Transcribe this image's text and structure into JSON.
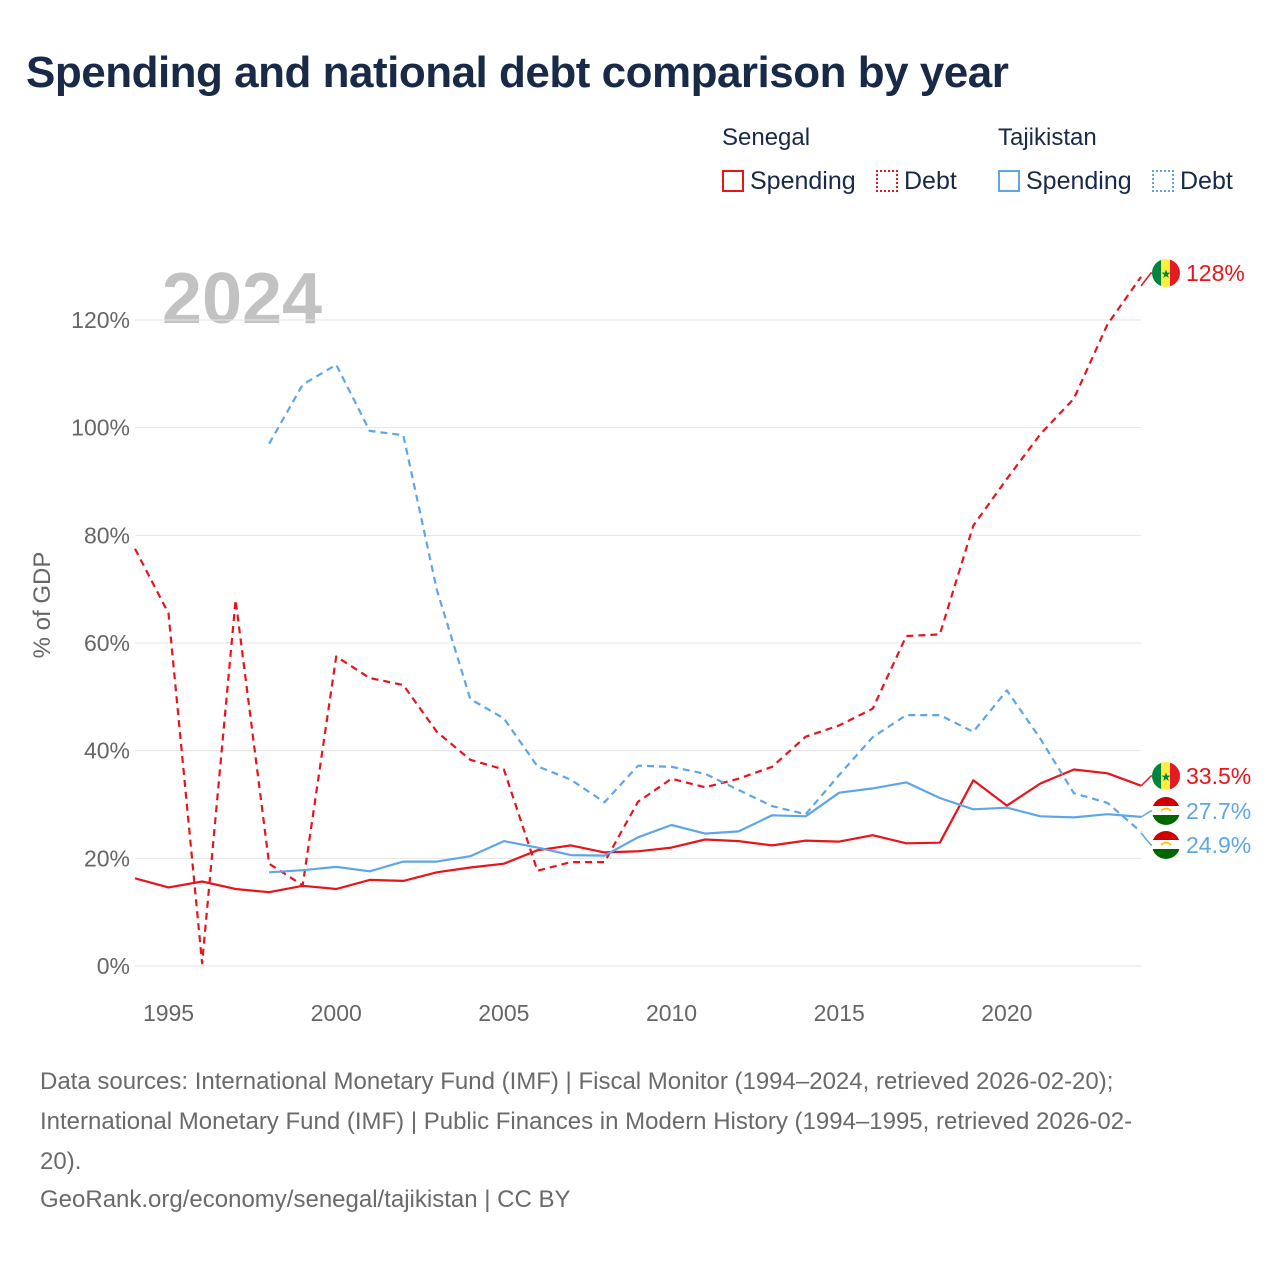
{
  "title": "Spending and national debt comparison by year",
  "legend": {
    "groups": [
      {
        "country": "Senegal",
        "spending_label": "Spending",
        "debt_label": "Debt",
        "color": "#e8141c"
      },
      {
        "country": "Tajikistan",
        "spending_label": "Spending",
        "debt_label": "Debt",
        "color": "#5ea6e6"
      }
    ]
  },
  "chart_data": {
    "type": "line",
    "title": "Spending and national debt comparison by year",
    "year_watermark": "2024",
    "xlabel": "",
    "ylabel": "% of GDP",
    "xlim": [
      1994,
      2024
    ],
    "ylim": [
      0,
      130
    ],
    "xticks": [
      1995,
      2000,
      2005,
      2010,
      2015,
      2020
    ],
    "yticks": [
      0,
      20,
      40,
      60,
      80,
      100,
      120
    ],
    "ytick_labels": [
      "0%",
      "20%",
      "40%",
      "60%",
      "80%",
      "100%",
      "120%"
    ],
    "grid": true,
    "series": [
      {
        "name": "Senegal Debt",
        "country": "Senegal",
        "measure": "Debt",
        "color": "#e8141c",
        "dashed": true,
        "x": [
          1994,
          1995,
          1996,
          1997,
          1998,
          1999,
          2000,
          2001,
          2002,
          2003,
          2004,
          2005,
          2006,
          2007,
          2008,
          2009,
          2010,
          2011,
          2012,
          2013,
          2014,
          2015,
          2016,
          2017,
          2018,
          2019,
          2020,
          2021,
          2022,
          2023,
          2024
        ],
        "values": [
          77.5,
          65.5,
          0.5,
          68,
          19,
          15,
          57.5,
          53.5,
          52.2,
          43.5,
          38.3,
          36.5,
          17.7,
          19.3,
          19.3,
          30.5,
          34.8,
          33.2,
          34.8,
          37,
          42.6,
          44.7,
          47.8,
          61.3,
          61.6,
          81.8,
          90.5,
          98.8,
          105.4,
          119.2,
          128
        ]
      },
      {
        "name": "Senegal Spending",
        "country": "Senegal",
        "measure": "Spending",
        "color": "#e8141c",
        "dashed": false,
        "x": [
          1994,
          1995,
          1996,
          1997,
          1998,
          1999,
          2000,
          2001,
          2002,
          2003,
          2004,
          2005,
          2006,
          2007,
          2008,
          2009,
          2010,
          2011,
          2012,
          2013,
          2014,
          2015,
          2016,
          2017,
          2018,
          2019,
          2020,
          2021,
          2022,
          2023,
          2024
        ],
        "values": [
          16.3,
          14.6,
          15.7,
          14.3,
          13.7,
          14.9,
          14.3,
          16,
          15.8,
          17.4,
          18.3,
          19,
          21.5,
          22.4,
          21.1,
          21.3,
          22,
          23.5,
          23.2,
          22.4,
          23.3,
          23.1,
          24.3,
          22.8,
          22.9,
          34.5,
          29.8,
          33.9,
          36.5,
          35.8,
          33.5
        ],
        "end_label": "33.5%"
      },
      {
        "name": "Tajikistan Debt",
        "country": "Tajikistan",
        "measure": "Debt",
        "color": "#5ea6e6",
        "dashed": true,
        "x": [
          1998,
          1999,
          2000,
          2001,
          2002,
          2003,
          2004,
          2005,
          2006,
          2007,
          2008,
          2009,
          2010,
          2011,
          2012,
          2013,
          2014,
          2015,
          2016,
          2017,
          2018,
          2019,
          2020,
          2021,
          2022,
          2023,
          2024
        ],
        "values": [
          97,
          108,
          111.7,
          99.4,
          98.6,
          69.9,
          49.6,
          46,
          37.1,
          34.6,
          30.4,
          37.2,
          37,
          35.7,
          32.7,
          29.7,
          28.2,
          35.5,
          42.5,
          46.6,
          46.6,
          43.5,
          51.2,
          42.2,
          32.1,
          30.3,
          24.9
        ],
        "end_label": "24.9%"
      },
      {
        "name": "Tajikistan Spending",
        "country": "Tajikistan",
        "measure": "Spending",
        "color": "#5ea6e6",
        "dashed": false,
        "x": [
          1998,
          1999,
          2000,
          2001,
          2002,
          2003,
          2004,
          2005,
          2006,
          2007,
          2008,
          2009,
          2010,
          2011,
          2012,
          2013,
          2014,
          2015,
          2016,
          2017,
          2018,
          2019,
          2020,
          2021,
          2022,
          2023,
          2024
        ],
        "values": [
          17.4,
          17.8,
          18.4,
          17.6,
          19.4,
          19.4,
          20.4,
          23.2,
          22,
          20.6,
          20.5,
          23.9,
          26.2,
          24.6,
          25,
          28,
          27.8,
          32.2,
          33,
          34.1,
          31.2,
          29.1,
          29.4,
          27.8,
          27.6,
          28.2,
          27.7
        ],
        "end_label": "27.7%"
      }
    ],
    "top_end_label": "128%"
  },
  "footer": {
    "sources_line1": "Data sources: International Monetary Fund (IMF) | Fiscal Monitor (1994–2024, retrieved 2026-02-20);",
    "sources_line2": "International Monetary Fund (IMF) | Public Finances in Modern History (1994–1995, retrieved 2026-02-",
    "sources_line3": "20).",
    "credit": "GeoRank.org/economy/senegal/tajikistan | CC BY"
  },
  "colors": {
    "senegal": "#e8141c",
    "tajikistan": "#5ea6e6",
    "title": "#182a48",
    "grid": "#e5e5e5",
    "axis_text": "#666666",
    "watermark": "#c2c2c2"
  }
}
